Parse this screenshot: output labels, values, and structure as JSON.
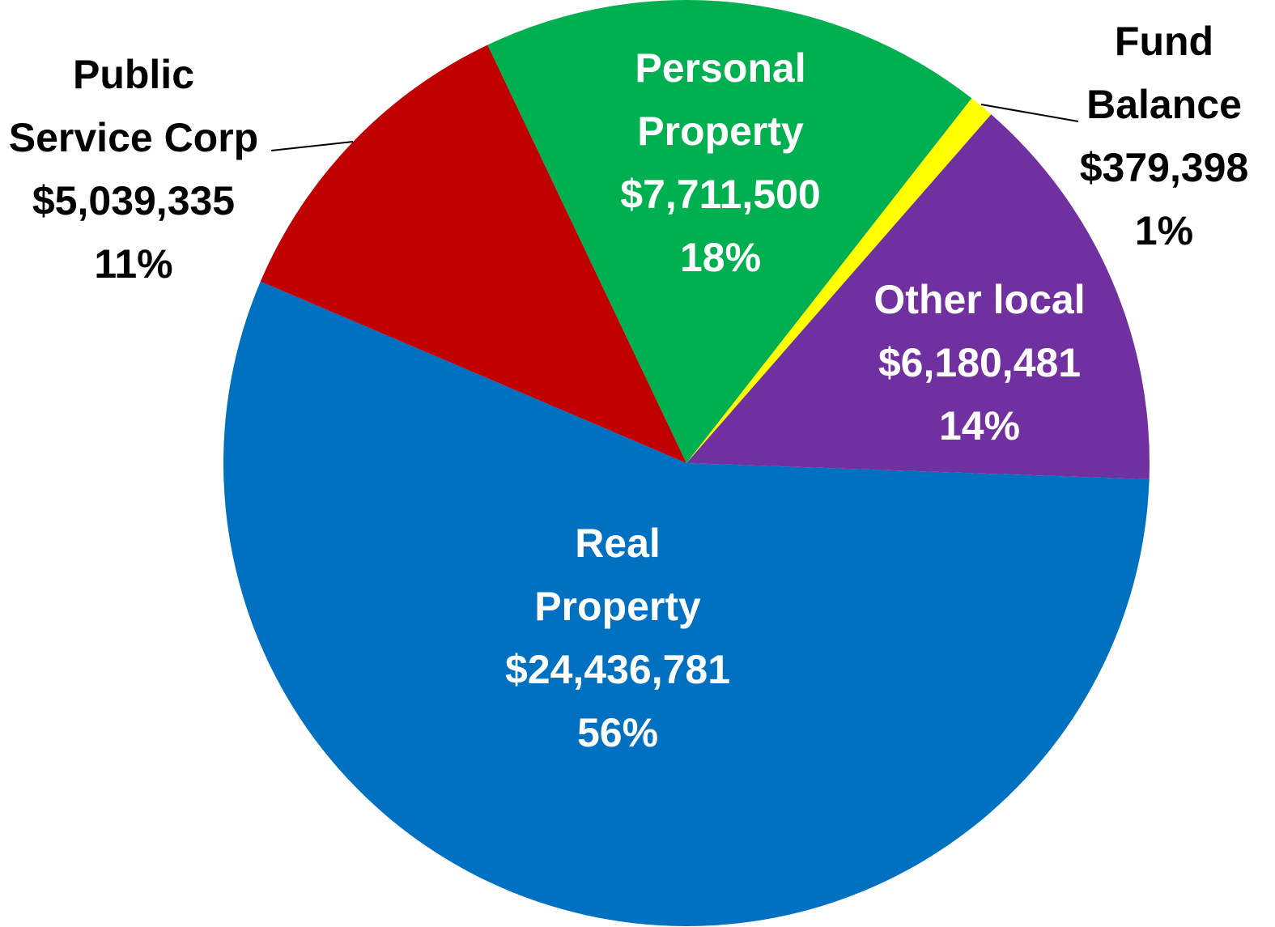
{
  "chart_data": {
    "type": "pie",
    "categories": [
      "Real Property",
      "Public Service Corp",
      "Personal Property",
      "Fund Balance",
      "Other local"
    ],
    "values": [
      24436781,
      5039335,
      7711500,
      379398,
      6180481
    ],
    "value_labels": [
      "$24,436,781",
      "$5,039,335",
      "$7,711,500",
      "$379,398",
      "$6,180,481"
    ],
    "percents": [
      56,
      11,
      18,
      1,
      14
    ],
    "percent_labels": [
      "56%",
      "11%",
      "18%",
      "1%",
      "14%"
    ],
    "colors": [
      "#0070c0",
      "#c00000",
      "#00b050",
      "#ffff00",
      "#7030a0"
    ]
  }
}
